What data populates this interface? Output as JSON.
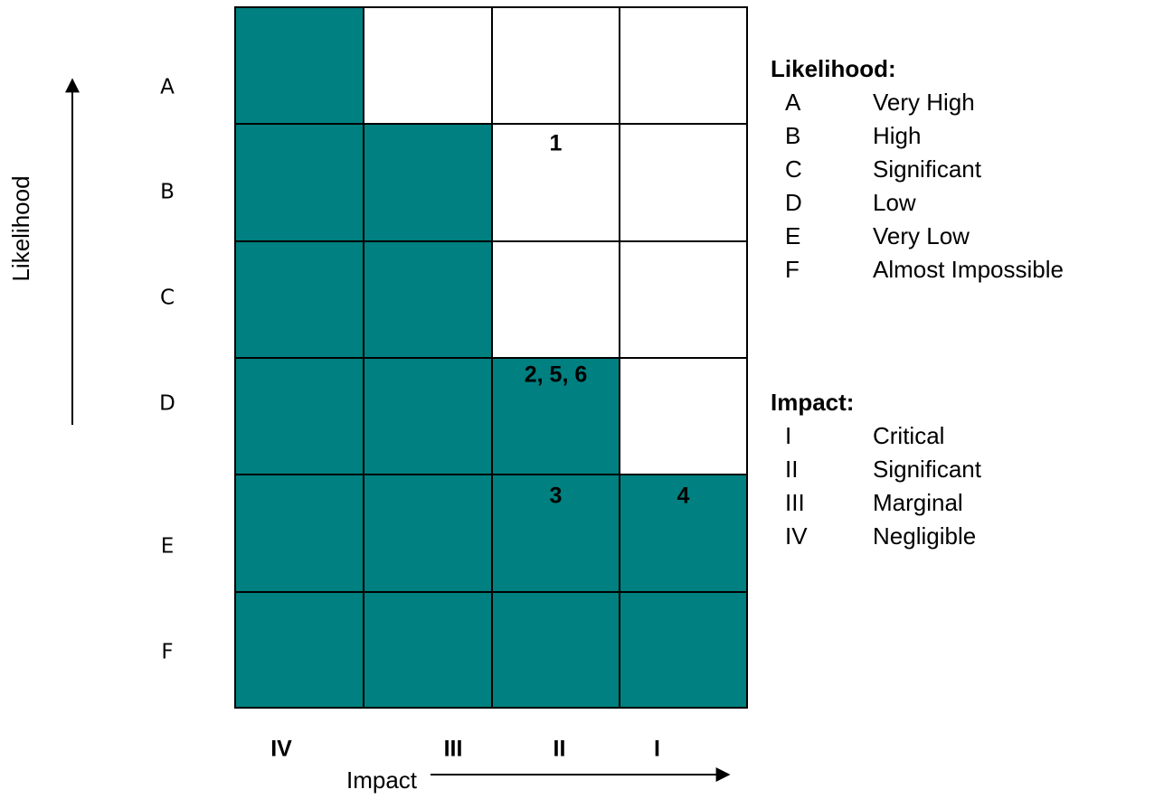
{
  "axis_titles": {
    "y": "Likelihood",
    "x": "Impact"
  },
  "rows": [
    "A",
    "B",
    "C",
    "D",
    "E",
    "F"
  ],
  "columns": [
    "IV",
    "III",
    "II",
    "I"
  ],
  "shade_color": "#008080",
  "shaded": [
    [
      true,
      false,
      false,
      false
    ],
    [
      true,
      true,
      false,
      false
    ],
    [
      true,
      true,
      false,
      false
    ],
    [
      true,
      true,
      true,
      false
    ],
    [
      true,
      true,
      true,
      true
    ],
    [
      true,
      true,
      true,
      true
    ]
  ],
  "cells": [
    [
      null,
      null,
      null,
      null
    ],
    [
      null,
      null,
      "1",
      null
    ],
    [
      null,
      null,
      null,
      null
    ],
    [
      null,
      null,
      "2, 5, 6",
      null
    ],
    [
      null,
      null,
      "3",
      "4"
    ],
    [
      null,
      null,
      null,
      null
    ]
  ],
  "legend": {
    "likelihood": {
      "title": "Likelihood:",
      "items": [
        {
          "key": "A",
          "label": "Very High"
        },
        {
          "key": "B",
          "label": "High"
        },
        {
          "key": "C",
          "label": "Significant"
        },
        {
          "key": "D",
          "label": "Low"
        },
        {
          "key": "E",
          "label": "Very Low"
        },
        {
          "key": "F",
          "label": "Almost Impossible"
        }
      ]
    },
    "impact": {
      "title": "Impact:",
      "items": [
        {
          "key": "I",
          "label": "Critical"
        },
        {
          "key": "II",
          "label": "Significant"
        },
        {
          "key": "III",
          "label": "Marginal"
        },
        {
          "key": "IV",
          "label": "Negligible"
        }
      ]
    }
  }
}
